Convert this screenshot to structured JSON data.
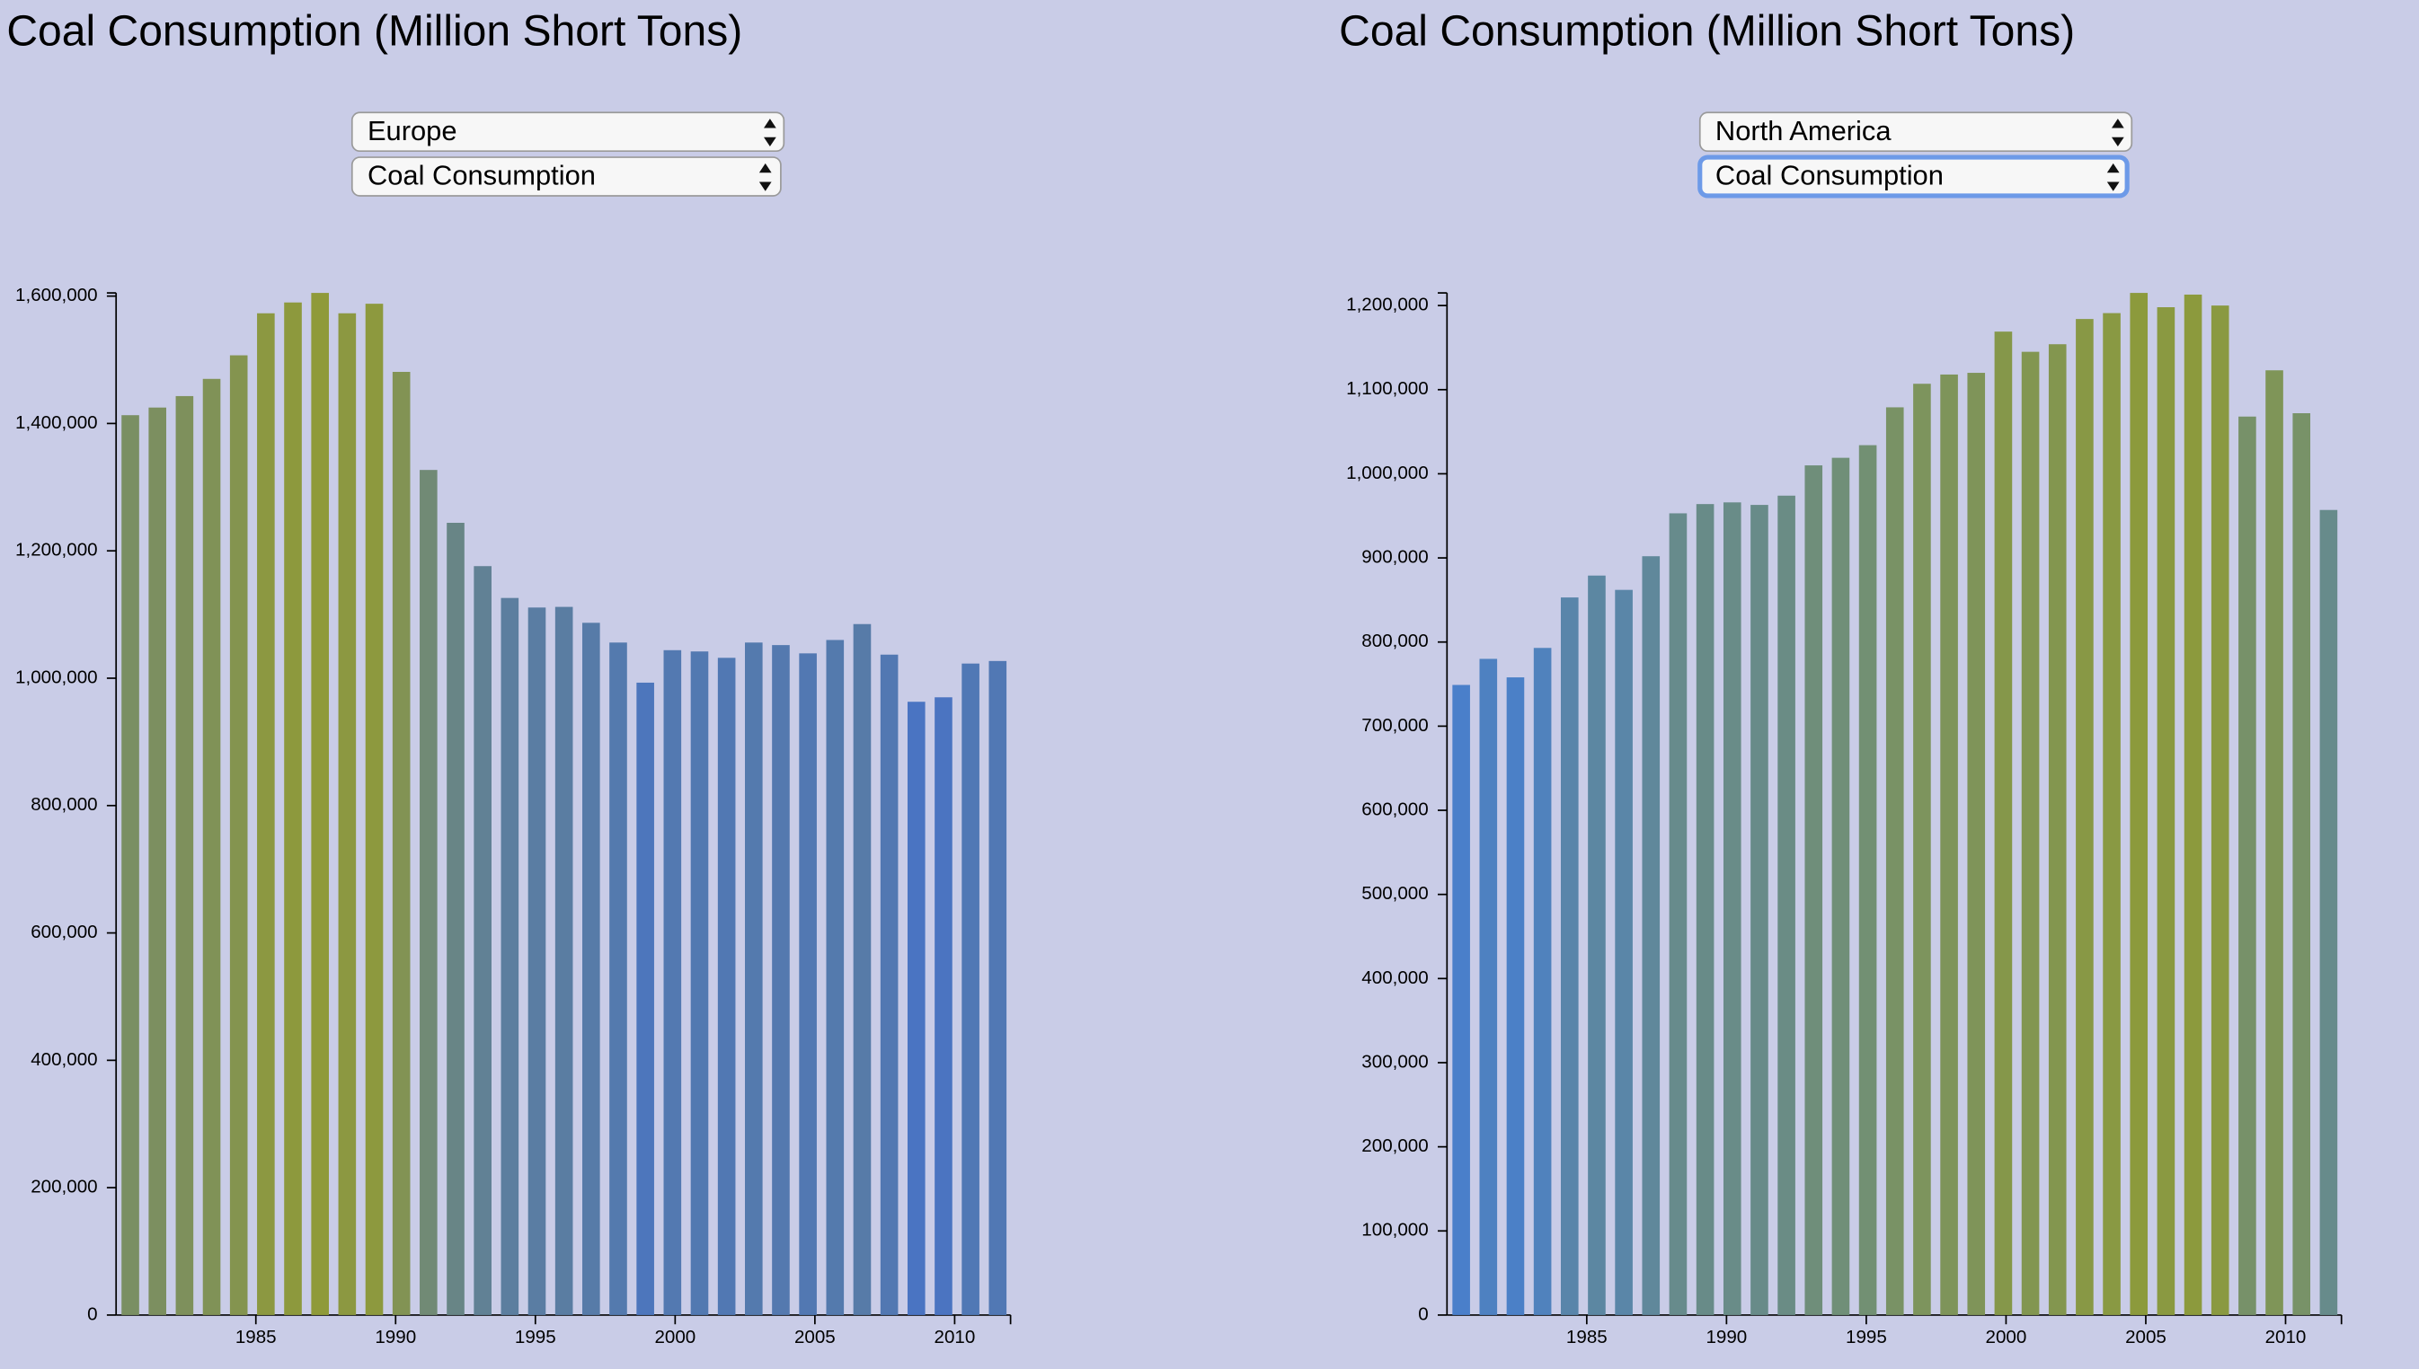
{
  "chart_data": [
    {
      "type": "bar",
      "title": "Coal Consumption (Million Short Tons)",
      "categories": [
        1980,
        1981,
        1982,
        1983,
        1984,
        1985,
        1986,
        1987,
        1988,
        1989,
        1990,
        1991,
        1992,
        1993,
        1994,
        1995,
        1996,
        1997,
        1998,
        1999,
        2000,
        2001,
        2002,
        2003,
        2004,
        2005,
        2006,
        2007,
        2008,
        2009,
        2010,
        2011,
        2012
      ],
      "values": [
        1413000,
        1425000,
        1443000,
        1470000,
        1507000,
        1573000,
        1590000,
        1605000,
        1573000,
        1588000,
        1481000,
        1327000,
        1244000,
        1176000,
        1126000,
        1111000,
        1112000,
        1087000,
        1056000,
        993000,
        1044000,
        1042000,
        1032000,
        1056000,
        1052000,
        1039000,
        1060000,
        1085000,
        1037000,
        963000,
        970000,
        1023000,
        1027000
      ],
      "colors": [
        "#4a74c2",
        "#8f9a3a"
      ],
      "xlim": [
        1980,
        2012
      ],
      "xticks": [
        1985,
        1990,
        1995,
        2000,
        2005,
        2010
      ],
      "ylim": [
        0,
        1605000
      ],
      "yticks": [
        0,
        {
          "value": 200000,
          "label": "200,000"
        },
        {
          "value": 400000,
          "label": "400,000"
        },
        {
          "value": 600000,
          "label": "600,000"
        },
        {
          "value": 800000,
          "label": "800,000"
        },
        {
          "value": 1000000,
          "label": "1,000,000"
        },
        {
          "value": 1200000,
          "label": "1,200,000"
        },
        {
          "value": 1400000,
          "label": "1,400,000"
        },
        {
          "value": 1600000,
          "label": "1,600,000"
        }
      ]
    },
    {
      "type": "bar",
      "title": "Coal Consumption (Million Short Tons)",
      "categories": [
        1980,
        1981,
        1982,
        1983,
        1984,
        1985,
        1986,
        1987,
        1988,
        1989,
        1990,
        1991,
        1992,
        1993,
        1994,
        1995,
        1996,
        1997,
        1998,
        1999,
        2000,
        2001,
        2002,
        2003,
        2004,
        2005,
        2006,
        2007,
        2008,
        2009,
        2010,
        2011,
        2012
      ],
      "values": [
        749000,
        780000,
        758000,
        793000,
        853000,
        879000,
        862000,
        902000,
        953000,
        964000,
        966000,
        963000,
        974000,
        1010000,
        1019000,
        1034000,
        1079000,
        1107000,
        1118000,
        1120000,
        1169000,
        1145000,
        1154000,
        1184000,
        1191000,
        1215000,
        1198000,
        1213000,
        1200000,
        1068000,
        1123000,
        1072000,
        957000
      ],
      "colors": [
        "#4a7fca",
        "#8c9a3c"
      ],
      "xlim": [
        1980,
        2012
      ],
      "xticks": [
        1985,
        1990,
        1995,
        2000,
        2005,
        2010
      ],
      "ylim": [
        0,
        1215000
      ],
      "yticks": [
        0,
        {
          "value": 100000,
          "label": "100,000"
        },
        {
          "value": 200000,
          "label": "200,000"
        },
        {
          "value": 300000,
          "label": "300,000"
        },
        {
          "value": 400000,
          "label": "400,000"
        },
        {
          "value": 500000,
          "label": "500,000"
        },
        {
          "value": 600000,
          "label": "600,000"
        },
        {
          "value": 700000,
          "label": "700,000"
        },
        {
          "value": 800000,
          "label": "800,000"
        },
        {
          "value": 900000,
          "label": "900,000"
        },
        {
          "value": 1000000,
          "label": "1,000,000"
        },
        {
          "value": 1100000,
          "label": "1,100,000"
        },
        {
          "value": 1200000,
          "label": "1,200,000"
        }
      ]
    }
  ],
  "controls": [
    {
      "region": "Europe",
      "measure": "Coal Consumption"
    },
    {
      "region": "North America",
      "measure": "Coal Consumption"
    }
  ]
}
